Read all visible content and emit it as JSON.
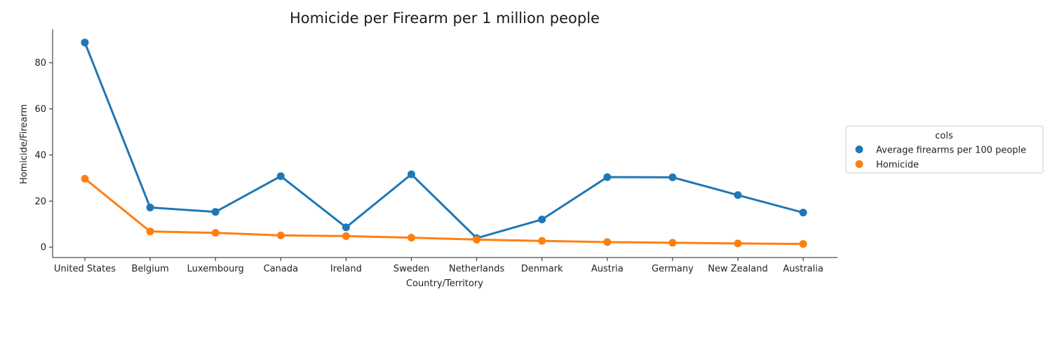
{
  "chart_data": {
    "type": "line",
    "title": "Homicide per Firearm per 1 million people",
    "xlabel": "Country/Territory",
    "ylabel": "Homicide/Firearm",
    "categories": [
      "United States",
      "Belgium",
      "Luxembourg",
      "Canada",
      "Ireland",
      "Sweden",
      "Netherlands",
      "Denmark",
      "Austria",
      "Germany",
      "New Zealand",
      "Australia"
    ],
    "ylim": [
      -4.5,
      94.5
    ],
    "yticks": [
      0,
      20,
      40,
      60,
      80
    ],
    "grid": false,
    "legend": {
      "title": "cols",
      "placement": "right"
    },
    "series": [
      {
        "name": "Average firearms per 100 people",
        "color": "#1f77b4",
        "values": [
          88.8,
          17.2,
          15.3,
          30.8,
          8.6,
          31.6,
          3.9,
          12.0,
          30.4,
          30.3,
          22.6,
          15.0
        ]
      },
      {
        "name": "Homicide",
        "color": "#ff7f0e",
        "values": [
          29.7,
          6.8,
          6.2,
          5.1,
          4.8,
          4.1,
          3.3,
          2.7,
          2.2,
          1.9,
          1.6,
          1.4
        ]
      }
    ]
  }
}
